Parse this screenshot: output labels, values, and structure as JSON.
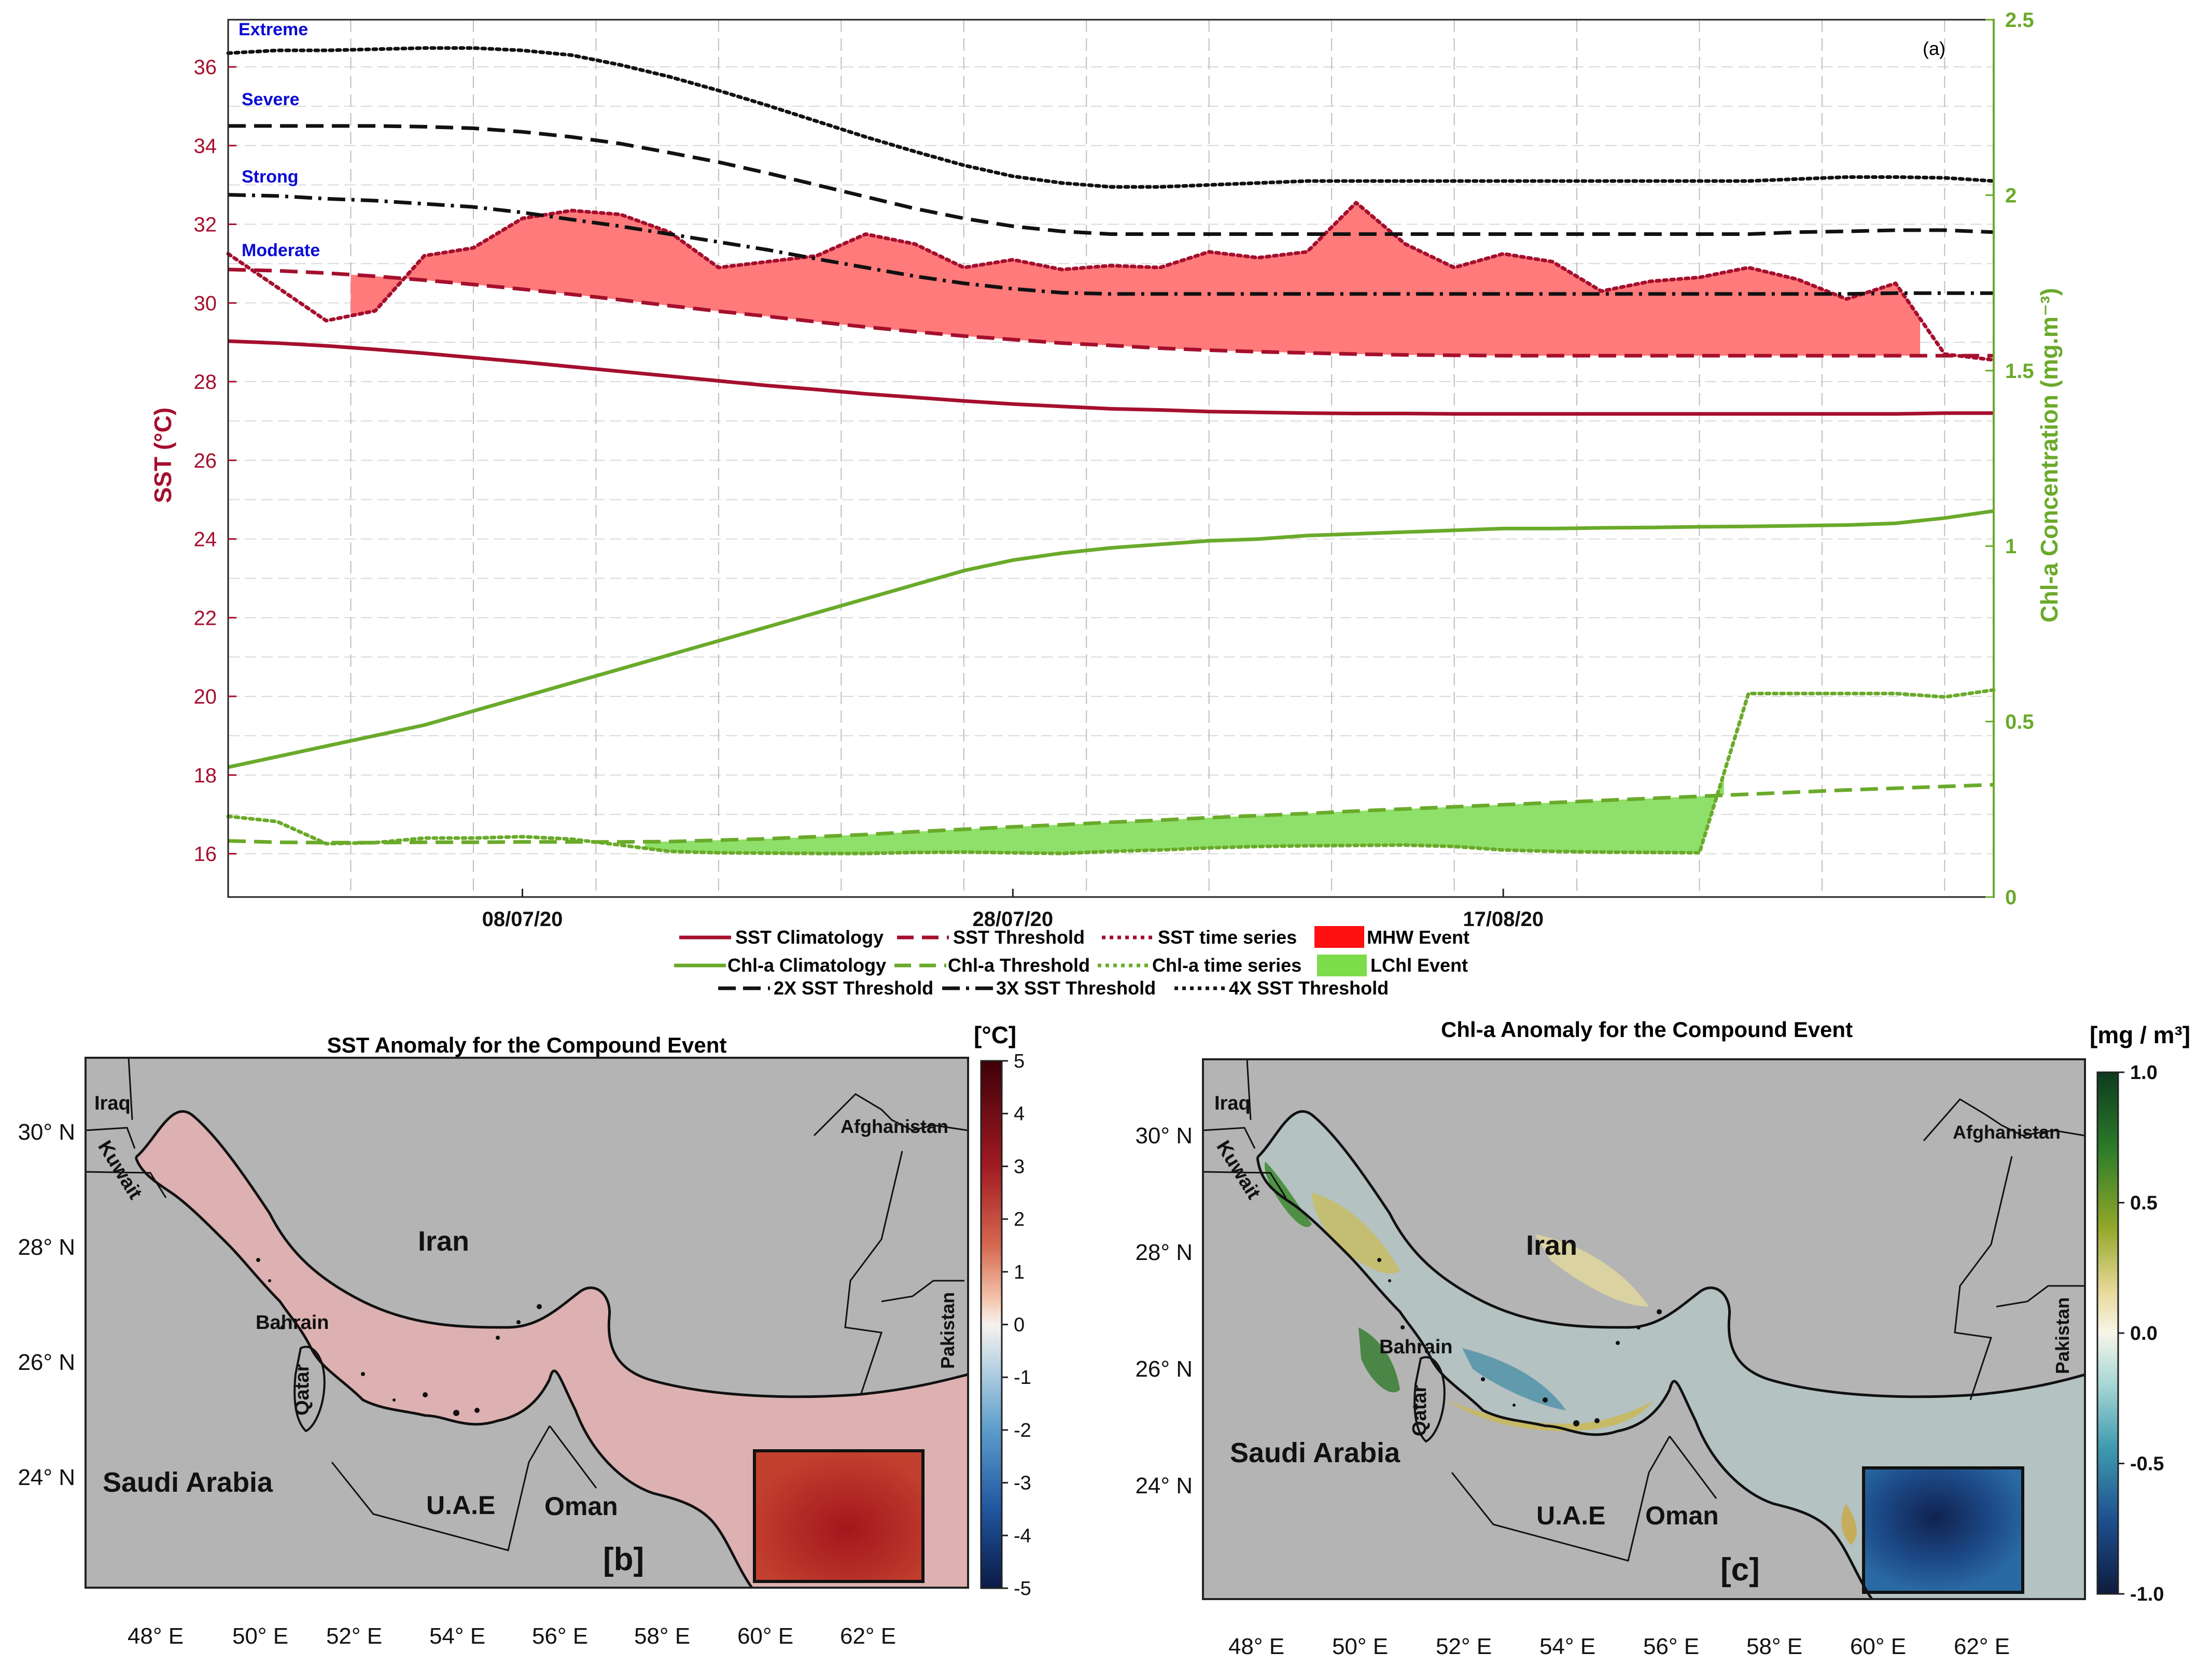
{
  "colors": {
    "sst": "#a50f2d",
    "chl": "#6aaa2a",
    "mhw_fill": "#ff7a7a",
    "lchl_fill": "#8ee06a",
    "legend_mhw": "#ff1010",
    "legend_lchl": "#7ddc4a",
    "threshold_line": "#111111",
    "category_label": "#0a0ad4",
    "land": "#b4b4b4",
    "sst_axis": "#a50f2d",
    "chl_axis": "#6aaa2a"
  },
  "chart_data": [
    {
      "id": "a",
      "type": "line",
      "panel_label": "(a)",
      "ylabel_left": "SST (°C)",
      "ylabel_right": "Chl-a Concentration (mg.m⁻³)",
      "x_start": "2020-06-26",
      "x_end": "2020-09-06",
      "xlim": [
        0,
        72
      ],
      "xtick_days": [
        12,
        32,
        52
      ],
      "xtick_labels": [
        "08/07/20",
        "28/07/20",
        "17/08/20"
      ],
      "ylim_left": [
        14.9,
        37.2
      ],
      "yticks_left": [
        16,
        18,
        20,
        22,
        24,
        26,
        28,
        30,
        32,
        34,
        36
      ],
      "ylim_right": [
        0,
        2.5
      ],
      "yticks_right": [
        "0",
        "0.5",
        "1",
        "1.5",
        "2",
        "2.5"
      ],
      "yticks_right_values": [
        0,
        0.5,
        1,
        1.5,
        2,
        2.5
      ],
      "category_labels": [
        "Extreme",
        "Severe",
        "Strong",
        "Moderate"
      ],
      "mhw_event_days": [
        5,
        69
      ],
      "lchl_event_days": [
        17,
        61
      ],
      "x": [
        0,
        2,
        4,
        6,
        8,
        10,
        12,
        14,
        16,
        18,
        20,
        22,
        24,
        26,
        28,
        30,
        32,
        34,
        36,
        38,
        40,
        42,
        44,
        46,
        48,
        50,
        52,
        54,
        56,
        58,
        60,
        62,
        64,
        66,
        68,
        70,
        72
      ],
      "series": [
        {
          "name": "SST Climatology",
          "axis": "left",
          "style": "solid",
          "values": [
            29.03,
            28.98,
            28.91,
            28.82,
            28.72,
            28.61,
            28.5,
            28.38,
            28.26,
            28.14,
            28.02,
            27.9,
            27.8,
            27.69,
            27.6,
            27.51,
            27.43,
            27.37,
            27.31,
            27.28,
            27.24,
            27.22,
            27.2,
            27.19,
            27.19,
            27.18,
            27.18,
            27.18,
            27.18,
            27.18,
            27.18,
            27.18,
            27.18,
            27.18,
            27.18,
            27.2,
            27.2
          ]
        },
        {
          "name": "SST Threshold",
          "axis": "left",
          "style": "dashed",
          "values": [
            30.85,
            30.82,
            30.76,
            30.68,
            30.58,
            30.47,
            30.35,
            30.22,
            30.08,
            29.93,
            29.79,
            29.66,
            29.52,
            29.39,
            29.27,
            29.16,
            29.07,
            28.98,
            28.92,
            28.85,
            28.8,
            28.76,
            28.73,
            28.7,
            28.68,
            28.67,
            28.66,
            28.66,
            28.66,
            28.66,
            28.66,
            28.66,
            28.66,
            28.66,
            28.66,
            28.66,
            28.66
          ]
        },
        {
          "name": "SST time series",
          "axis": "left",
          "style": "dotted",
          "values": [
            31.25,
            30.4,
            29.55,
            29.8,
            31.2,
            31.4,
            32.15,
            32.35,
            32.25,
            31.8,
            30.9,
            31.05,
            31.2,
            31.75,
            31.5,
            30.9,
            31.1,
            30.85,
            30.95,
            30.9,
            31.3,
            31.15,
            31.3,
            32.55,
            31.5,
            30.9,
            31.25,
            31.05,
            30.3,
            30.55,
            30.65,
            30.9,
            30.6,
            30.1,
            30.5,
            28.7,
            28.55
          ]
        },
        {
          "name": "2X SST Threshold",
          "axis": "left",
          "style": "dash-dot",
          "values": [
            32.75,
            32.72,
            32.65,
            32.6,
            32.52,
            32.44,
            32.3,
            32.12,
            31.95,
            31.75,
            31.55,
            31.35,
            31.12,
            30.9,
            30.68,
            30.5,
            30.36,
            30.26,
            30.23,
            30.23,
            30.23,
            30.23,
            30.23,
            30.23,
            30.23,
            30.23,
            30.23,
            30.23,
            30.23,
            30.23,
            30.23,
            30.23,
            30.23,
            30.23,
            30.25,
            30.25,
            30.25
          ]
        },
        {
          "name": "3X SST Threshold",
          "axis": "left",
          "style": "dashed",
          "values": [
            34.5,
            34.5,
            34.5,
            34.5,
            34.48,
            34.44,
            34.35,
            34.22,
            34.05,
            33.82,
            33.58,
            33.3,
            33,
            32.7,
            32.4,
            32.15,
            31.95,
            31.82,
            31.75,
            31.75,
            31.75,
            31.75,
            31.75,
            31.75,
            31.75,
            31.75,
            31.75,
            31.75,
            31.75,
            31.75,
            31.75,
            31.75,
            31.8,
            31.82,
            31.85,
            31.85,
            31.8
          ]
        },
        {
          "name": "4X SST Threshold",
          "axis": "left",
          "style": "dotted",
          "values": [
            36.35,
            36.42,
            36.42,
            36.45,
            36.48,
            36.48,
            36.42,
            36.3,
            36.05,
            35.75,
            35.4,
            35.02,
            34.62,
            34.22,
            33.85,
            33.5,
            33.22,
            33.05,
            32.95,
            32.95,
            33,
            33.05,
            33.1,
            33.1,
            33.1,
            33.1,
            33.1,
            33.1,
            33.1,
            33.1,
            33.1,
            33.1,
            33.15,
            33.2,
            33.2,
            33.18,
            33.1
          ]
        },
        {
          "name": "Chl-a Climatology",
          "axis": "right",
          "style": "solid",
          "values": [
            0.37,
            0.4,
            0.43,
            0.46,
            0.49,
            0.53,
            0.57,
            0.61,
            0.65,
            0.69,
            0.73,
            0.77,
            0.81,
            0.85,
            0.89,
            0.93,
            0.96,
            0.98,
            0.995,
            1.005,
            1.015,
            1.02,
            1.03,
            1.035,
            1.04,
            1.045,
            1.05,
            1.05,
            1.052,
            1.053,
            1.055,
            1.056,
            1.058,
            1.06,
            1.065,
            1.08,
            1.1
          ]
        },
        {
          "name": "Chl-a Threshold",
          "axis": "right",
          "style": "dashed",
          "values": [
            0.16,
            0.156,
            0.155,
            0.155,
            0.156,
            0.156,
            0.157,
            0.157,
            0.157,
            0.158,
            0.162,
            0.166,
            0.172,
            0.178,
            0.186,
            0.193,
            0.2,
            0.206,
            0.213,
            0.219,
            0.226,
            0.232,
            0.238,
            0.245,
            0.251,
            0.257,
            0.263,
            0.269,
            0.275,
            0.281,
            0.287,
            0.293,
            0.299,
            0.305,
            0.31,
            0.315,
            0.32
          ]
        },
        {
          "name": "Chl-a time series",
          "axis": "right",
          "style": "dotted",
          "values": [
            0.23,
            0.215,
            0.152,
            0.155,
            0.168,
            0.168,
            0.172,
            0.165,
            0.148,
            0.13,
            0.126,
            0.125,
            0.124,
            0.124,
            0.127,
            0.128,
            0.126,
            0.124,
            0.13,
            0.134,
            0.14,
            0.144,
            0.146,
            0.147,
            0.148,
            0.144,
            0.134,
            0.13,
            0.128,
            0.127,
            0.126,
            0.58,
            0.58,
            0.58,
            0.58,
            0.57,
            0.59
          ]
        }
      ],
      "legend": {
        "row1": [
          "SST Climatology",
          "SST Threshold",
          "SST time series",
          "MHW Event"
        ],
        "row2": [
          "Chl-a Climatology",
          "Chl-a Threshold",
          "Chl-a time series",
          "LChl Event"
        ],
        "row3": [
          "2X SST Threshold",
          "3X SST Threshold",
          "4X SST Threshold"
        ]
      }
    },
    {
      "id": "b",
      "type": "heatmap",
      "title": "SST Anomaly  for the Compound Event",
      "panel_label": "[b]",
      "colorbar_unit": "[°C]",
      "colorbar_ticks": [
        "5",
        "4",
        "3",
        "2",
        "1",
        "0",
        "-1",
        "-2",
        "-3",
        "-4",
        "-5"
      ],
      "colorbar_range": [
        -5,
        5
      ],
      "lat_ticks": [
        "30° N",
        "28° N",
        "26° N",
        "24° N"
      ],
      "lon_ticks": [
        "48° E",
        "50° E",
        "52° E",
        "54° E",
        "56° E",
        "58° E",
        "60° E",
        "62° E"
      ],
      "regions": [
        "Iraq",
        "Kuwait",
        "Iran",
        "Afghanistan",
        "Pakistan",
        "Bahrain",
        "Qatar",
        "Saudi Arabia",
        "U.A.E",
        "Oman"
      ],
      "anomaly_gulf": 1.5,
      "anomaly_gulf_of_oman": 2.2,
      "anomaly_box": 3.8
    },
    {
      "id": "c",
      "type": "heatmap",
      "title": "Chl-a Anomaly for the Compound Event",
      "panel_label": "[c]",
      "colorbar_unit": "[mg / m³]",
      "colorbar_ticks": [
        "1.0",
        "0.5",
        "0.0",
        "-0.5",
        "-1.0"
      ],
      "colorbar_range": [
        -1,
        1
      ],
      "lat_ticks": [
        "30° N",
        "28° N",
        "26° N",
        "24° N"
      ],
      "lon_ticks": [
        "48° E",
        "50° E",
        "52° E",
        "54° E",
        "56° E",
        "58° E",
        "60° E",
        "62° E"
      ],
      "regions": [
        "Iraq",
        "Kuwait",
        "Iran",
        "Afghanistan",
        "Pakistan",
        "Bahrain",
        "Qatar",
        "Saudi Arabia",
        "U.A.E",
        "Oman"
      ],
      "anomaly_gulf": -0.05,
      "anomaly_gulf_of_oman": -0.3,
      "anomaly_box": -0.9
    }
  ]
}
